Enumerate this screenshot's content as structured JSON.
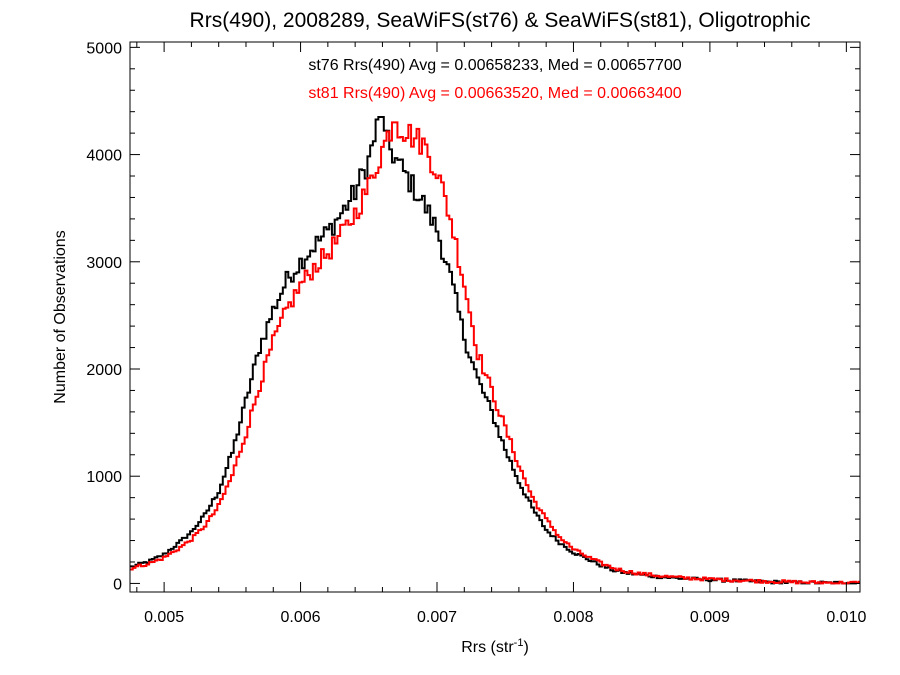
{
  "chart_data": {
    "type": "line",
    "step": true,
    "title": "Rrs(490), 2008289, SeaWiFS(st76) & SeaWiFS(st81), Oligotrophic",
    "xlabel": "Rrs (str",
    "xlabel_sup": "-1",
    "xlabel_close": ")",
    "ylabel": "Number of Observations",
    "xlim": [
      0.00475,
      0.0101
    ],
    "ylim": [
      -80,
      5050
    ],
    "x_ticks": [
      0.005,
      0.006,
      0.007,
      0.008,
      0.009,
      0.01
    ],
    "x_tick_labels": [
      "0.005",
      "0.006",
      "0.007",
      "0.008",
      "0.009",
      "0.010"
    ],
    "y_ticks": [
      0,
      1000,
      2000,
      3000,
      4000,
      5000
    ],
    "y_tick_labels": [
      "0",
      "1000",
      "2000",
      "3000",
      "4000",
      "5000"
    ],
    "grid": false,
    "annotations": [
      {
        "text": "st76 Rrs(490) Avg = 0.00658233, Med = 0.00657700",
        "color": "#000000"
      },
      {
        "text": "st81 Rrs(490) Avg = 0.00663520, Med = 0.00663400",
        "color": "#ff0000"
      }
    ],
    "series": [
      {
        "color": "#000000",
        "peak_x": 0.00658,
        "peak_y": 4350,
        "points": [
          [
            0.00475,
            150
          ],
          [
            0.0049,
            210
          ],
          [
            0.005,
            270
          ],
          [
            0.0051,
            370
          ],
          [
            0.0052,
            480
          ],
          [
            0.0053,
            640
          ],
          [
            0.0054,
            860
          ],
          [
            0.0055,
            1220
          ],
          [
            0.0056,
            1700
          ],
          [
            0.0057,
            2200
          ],
          [
            0.0058,
            2550
          ],
          [
            0.0059,
            2830
          ],
          [
            0.006,
            3000
          ],
          [
            0.0061,
            3150
          ],
          [
            0.0062,
            3280
          ],
          [
            0.0063,
            3450
          ],
          [
            0.0064,
            3650
          ],
          [
            0.0065,
            3950
          ],
          [
            0.00658,
            4350
          ],
          [
            0.0066,
            4200
          ],
          [
            0.0067,
            3950
          ],
          [
            0.0068,
            3750
          ],
          [
            0.0069,
            3550
          ],
          [
            0.007,
            3300
          ],
          [
            0.0071,
            2850
          ],
          [
            0.0072,
            2300
          ],
          [
            0.0073,
            1900
          ],
          [
            0.0074,
            1600
          ],
          [
            0.0075,
            1250
          ],
          [
            0.0076,
            950
          ],
          [
            0.0077,
            700
          ],
          [
            0.0078,
            500
          ],
          [
            0.0079,
            380
          ],
          [
            0.008,
            290
          ],
          [
            0.0081,
            230
          ],
          [
            0.0082,
            170
          ],
          [
            0.0083,
            120
          ],
          [
            0.0084,
            95
          ],
          [
            0.0085,
            80
          ],
          [
            0.0086,
            65
          ],
          [
            0.0087,
            55
          ],
          [
            0.0088,
            45
          ],
          [
            0.0089,
            40
          ],
          [
            0.009,
            35
          ],
          [
            0.0091,
            30
          ],
          [
            0.0092,
            25
          ],
          [
            0.0093,
            20
          ],
          [
            0.0094,
            15
          ],
          [
            0.0095,
            12
          ],
          [
            0.0096,
            10
          ],
          [
            0.0097,
            8
          ],
          [
            0.0098,
            6
          ],
          [
            0.0099,
            5
          ],
          [
            0.0101,
            4
          ]
        ]
      },
      {
        "color": "#ff0000",
        "peak_x": 0.00668,
        "peak_y": 4300,
        "points": [
          [
            0.00475,
            140
          ],
          [
            0.0049,
            190
          ],
          [
            0.005,
            240
          ],
          [
            0.0051,
            320
          ],
          [
            0.0052,
            410
          ],
          [
            0.0053,
            540
          ],
          [
            0.0054,
            720
          ],
          [
            0.0055,
            1010
          ],
          [
            0.0056,
            1400
          ],
          [
            0.0057,
            1850
          ],
          [
            0.0058,
            2250
          ],
          [
            0.0059,
            2550
          ],
          [
            0.006,
            2780
          ],
          [
            0.0061,
            2950
          ],
          [
            0.0062,
            3080
          ],
          [
            0.0063,
            3250
          ],
          [
            0.0064,
            3450
          ],
          [
            0.0065,
            3700
          ],
          [
            0.0066,
            4050
          ],
          [
            0.00668,
            4300
          ],
          [
            0.0069,
            4100
          ],
          [
            0.007,
            3850
          ],
          [
            0.0071,
            3400
          ],
          [
            0.0072,
            2800
          ],
          [
            0.0073,
            2150
          ],
          [
            0.0074,
            1800
          ],
          [
            0.0075,
            1450
          ],
          [
            0.0076,
            1100
          ],
          [
            0.0077,
            800
          ],
          [
            0.0078,
            600
          ],
          [
            0.0079,
            430
          ],
          [
            0.008,
            320
          ],
          [
            0.0081,
            250
          ],
          [
            0.0082,
            190
          ],
          [
            0.0083,
            140
          ],
          [
            0.0084,
            110
          ],
          [
            0.0085,
            90
          ],
          [
            0.0086,
            75
          ],
          [
            0.0087,
            62
          ],
          [
            0.0088,
            52
          ],
          [
            0.0089,
            45
          ],
          [
            0.009,
            40
          ],
          [
            0.0091,
            35
          ],
          [
            0.0092,
            30
          ],
          [
            0.0093,
            25
          ],
          [
            0.0094,
            20
          ],
          [
            0.0095,
            16
          ],
          [
            0.0096,
            13
          ],
          [
            0.0097,
            10
          ],
          [
            0.0098,
            8
          ],
          [
            0.0099,
            6
          ],
          [
            0.0101,
            5
          ]
        ]
      }
    ]
  }
}
